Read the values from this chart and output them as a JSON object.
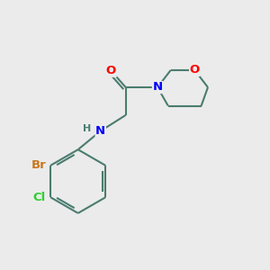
{
  "bg_color": "#ebebeb",
  "bond_color": "#4a7c6f",
  "bond_width": 1.5,
  "atom_colors": {
    "O": "#ff0000",
    "N": "#0000ff",
    "Br": "#c87820",
    "Cl": "#32cd32",
    "C": "#4a7c6f",
    "H": "#4a7c6f"
  },
  "font_size_atoms": 9.5,
  "font_size_small": 8.0,
  "xlim": [
    0,
    10
  ],
  "ylim": [
    0,
    10
  ]
}
